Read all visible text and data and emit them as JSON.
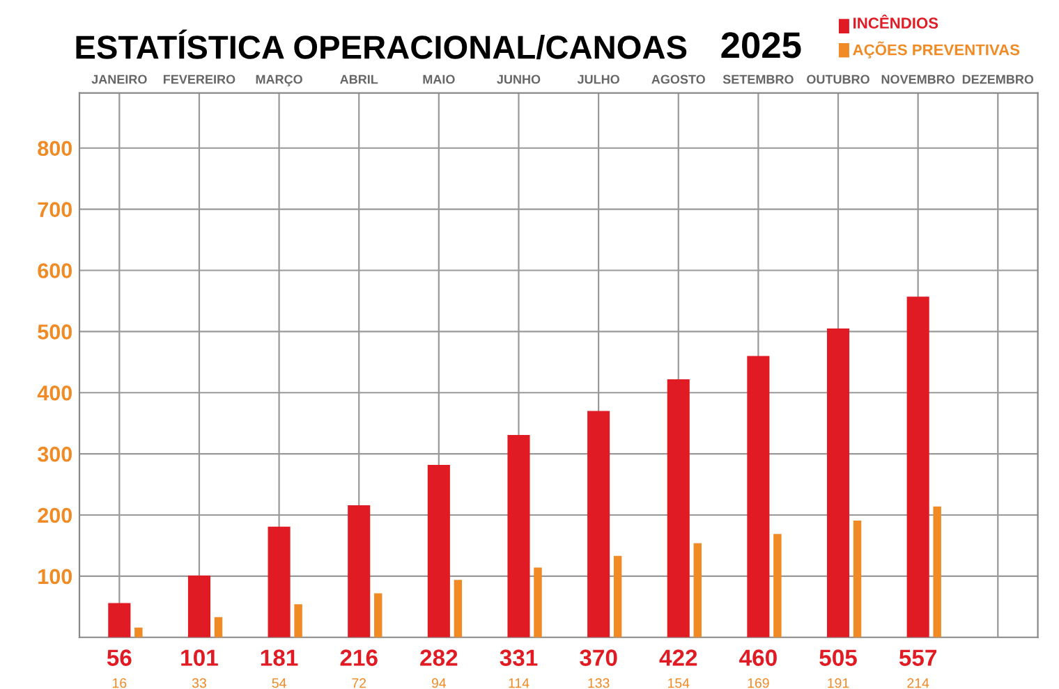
{
  "chart_data": {
    "type": "bar",
    "title": "ESTATÍSTICA OPERACIONAL/CANOAS",
    "subtitle": "2025",
    "categories": [
      "JANEIRO",
      "FEVEREIRO",
      "MARÇO",
      "ABRIL",
      "MAIO",
      "JUNHO",
      "JULHO",
      "AGOSTO",
      "SETEMBRO",
      "OUTUBRO",
      "NOVEMBRO",
      "DEZEMBRO"
    ],
    "series": [
      {
        "name": "INCÊNDIOS",
        "color": "#e01b24",
        "values": [
          56,
          101,
          181,
          216,
          282,
          331,
          370,
          422,
          460,
          505,
          557,
          null
        ]
      },
      {
        "name": "AÇÕES PREVENTIVAS",
        "color": "#f08a24",
        "values": [
          16,
          33,
          54,
          72,
          94,
          114,
          133,
          154,
          169,
          191,
          214,
          null
        ]
      }
    ],
    "ylim": [
      0,
      890
    ],
    "yticks": [
      100,
      200,
      300,
      400,
      500,
      600,
      700,
      800
    ],
    "grid": true,
    "legend": "top right",
    "data_labels": true
  }
}
